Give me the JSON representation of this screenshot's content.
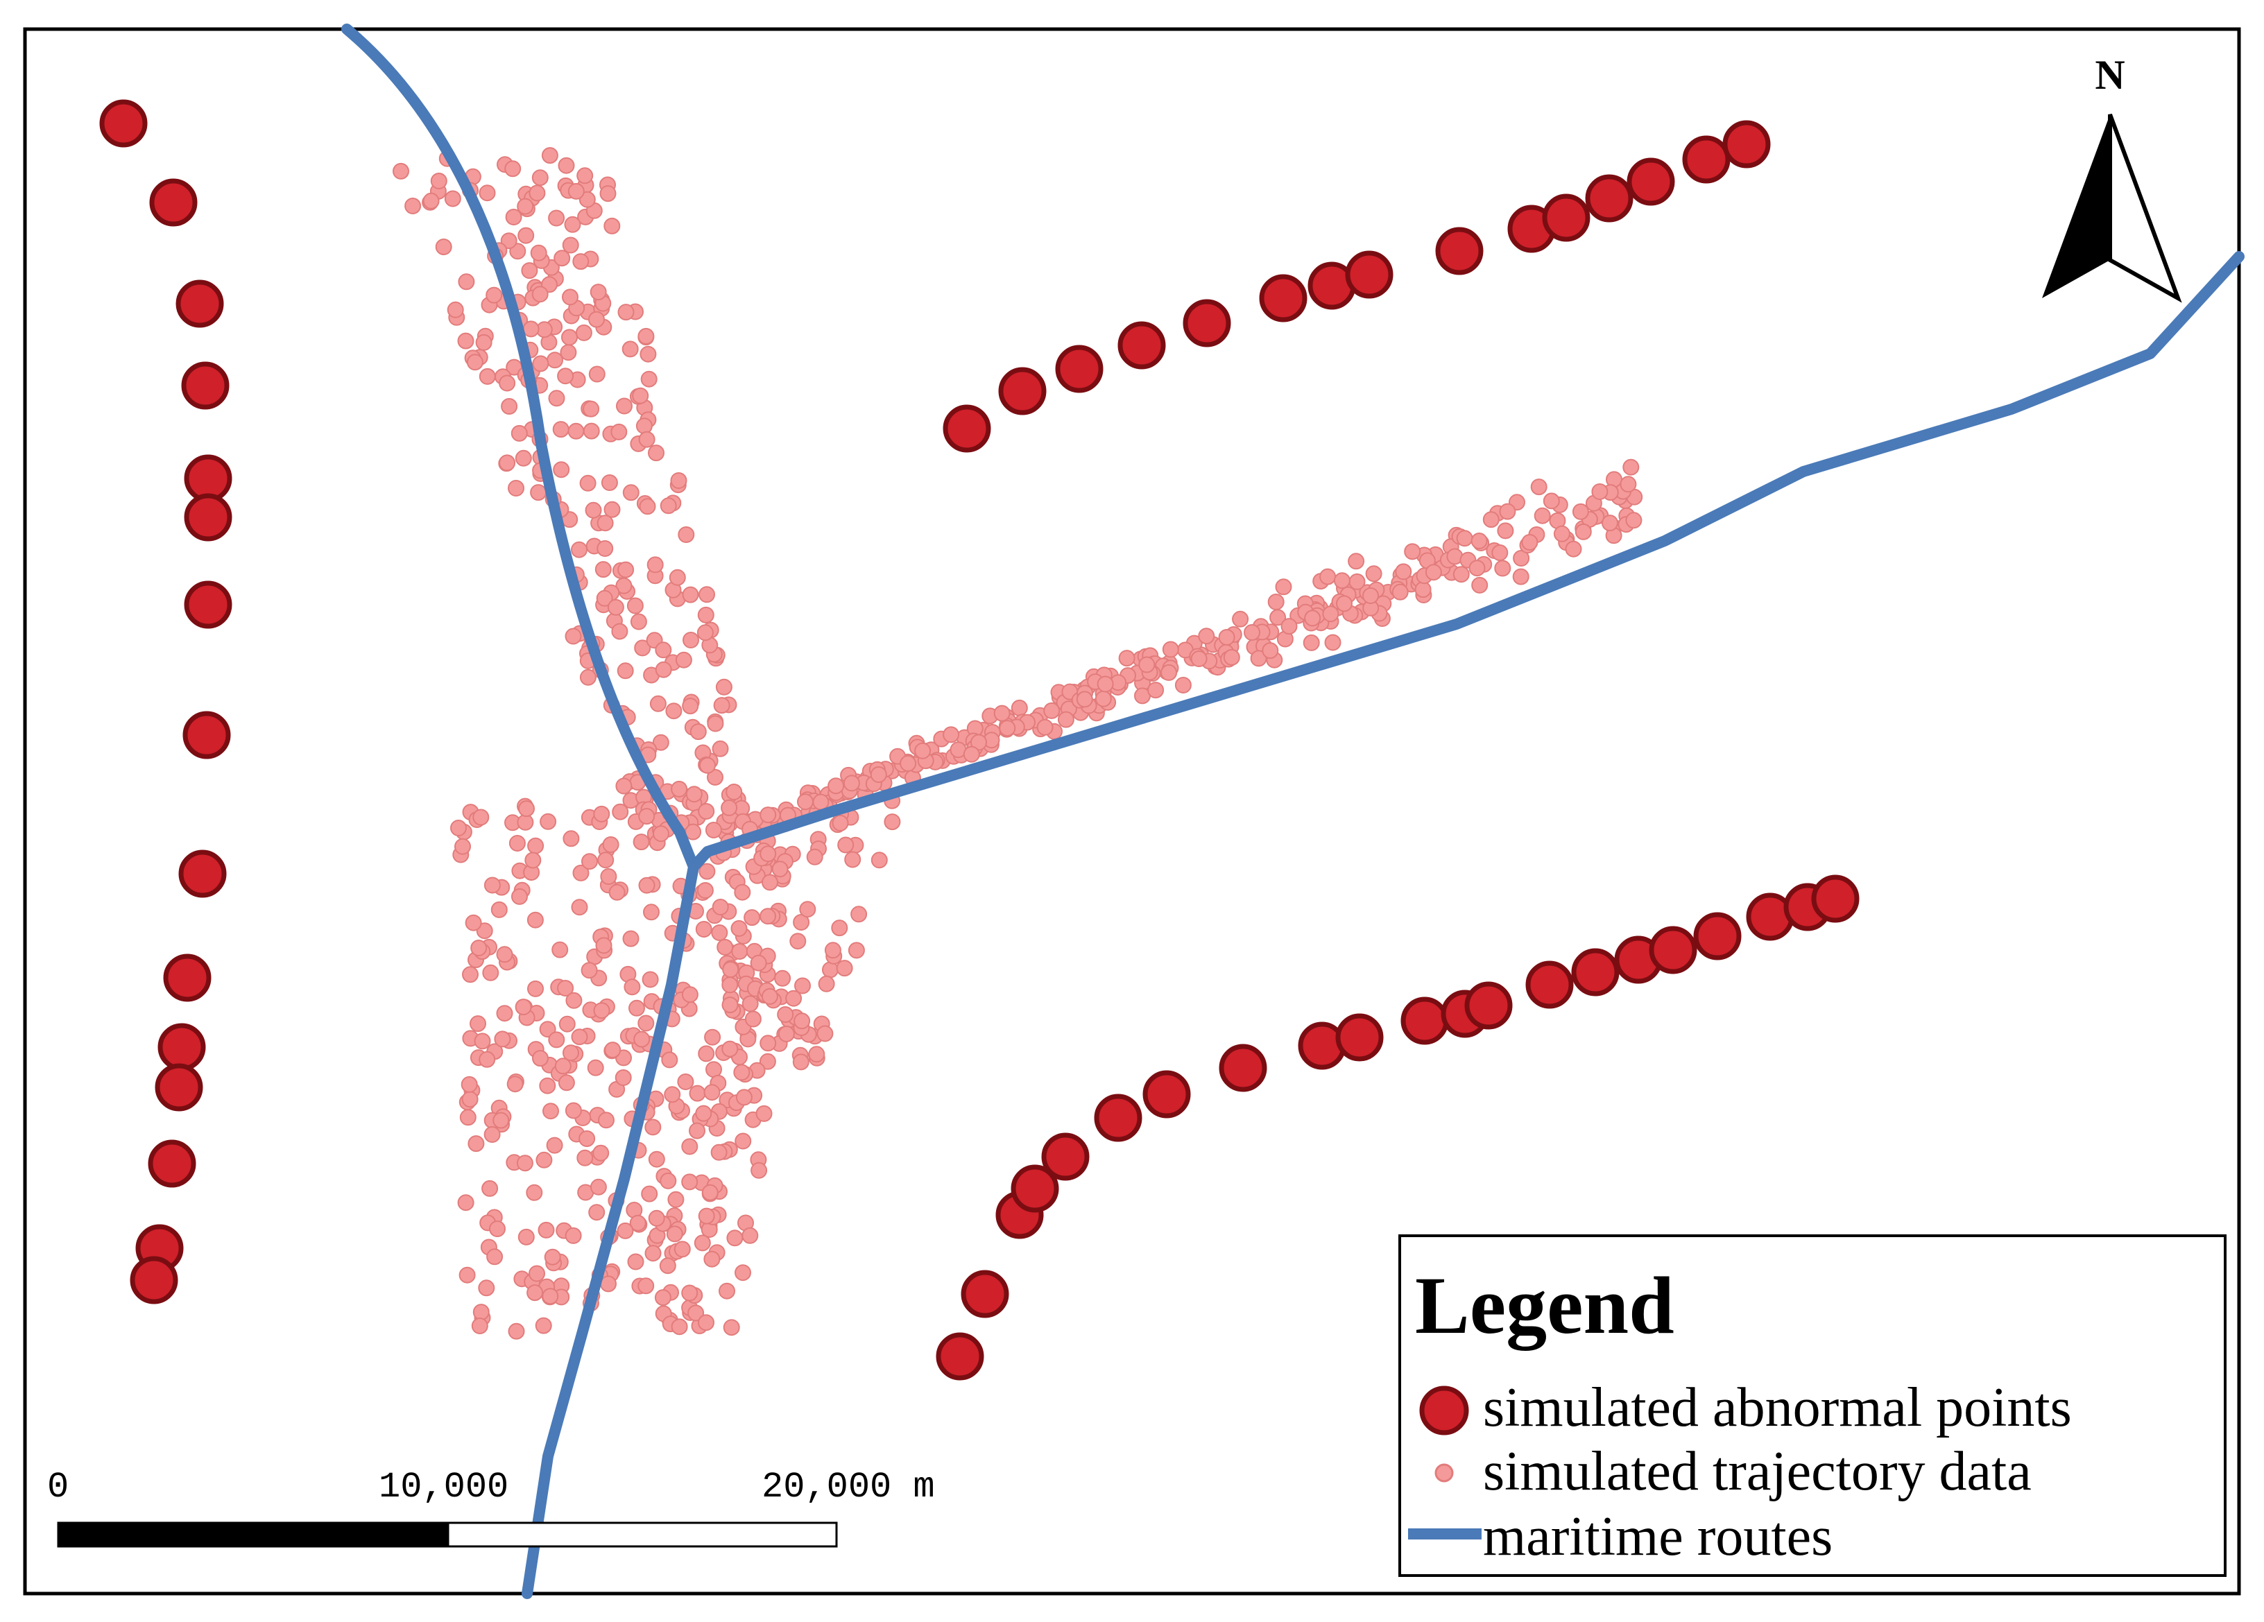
{
  "north_arrow": {
    "label": "N"
  },
  "scale_bar": {
    "labels": [
      "0",
      "10,000",
      "20,000 m"
    ],
    "ticks_m": [
      0,
      10000,
      20000
    ]
  },
  "legend": {
    "title": "Legend",
    "items": [
      {
        "label": "simulated abnormal points",
        "symbol": "large-red-circle"
      },
      {
        "label": "simulated trajectory data",
        "symbol": "small-pink-dot"
      },
      {
        "label": "maritime routes",
        "symbol": "blue-line"
      }
    ]
  },
  "colors": {
    "abnormal_fill": "#d0202a",
    "abnormal_stroke": "#7a0d12",
    "trajectory_fill": "#f59a9a",
    "trajectory_stroke": "#e27c7c",
    "route": "#4a7ab8",
    "frame": "#000000",
    "background": "#ffffff"
  }
}
